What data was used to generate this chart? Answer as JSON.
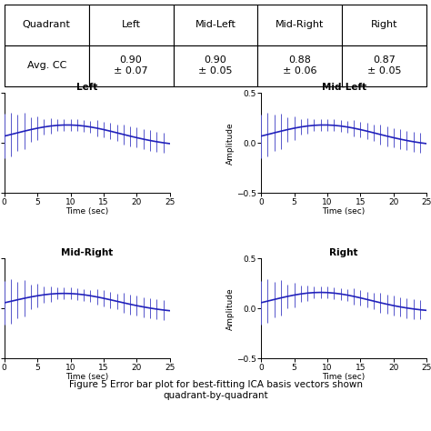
{
  "table_headers": [
    "Quadrant",
    "Left",
    "Mid-Left",
    "Mid-Right",
    "Right"
  ],
  "table_row_label": "Avg. CC",
  "table_values": [
    [
      "0.90",
      "± 0.07"
    ],
    [
      "0.90",
      "± 0.05"
    ],
    [
      "0.88",
      "± 0.06"
    ],
    [
      "0.87",
      "± 0.05"
    ]
  ],
  "subplot_titles": [
    "Left",
    "Mid-Left",
    "Mid-Right",
    "Right"
  ],
  "xlabel": "Time (sec)",
  "ylabel": "Amplitude",
  "ylim": [
    -0.5,
    0.5
  ],
  "xlim": [
    0,
    25
  ],
  "xticks": [
    0,
    5,
    10,
    15,
    20,
    25
  ],
  "yticks": [
    -0.5,
    0,
    0.5
  ],
  "line_color": "#2222bb",
  "err_color": "#5555cc",
  "caption_line1": "Figure 5 Error bar plot for best-fitting ICA basis vectors shown",
  "caption_line2": "quadrant-by-quadrant"
}
